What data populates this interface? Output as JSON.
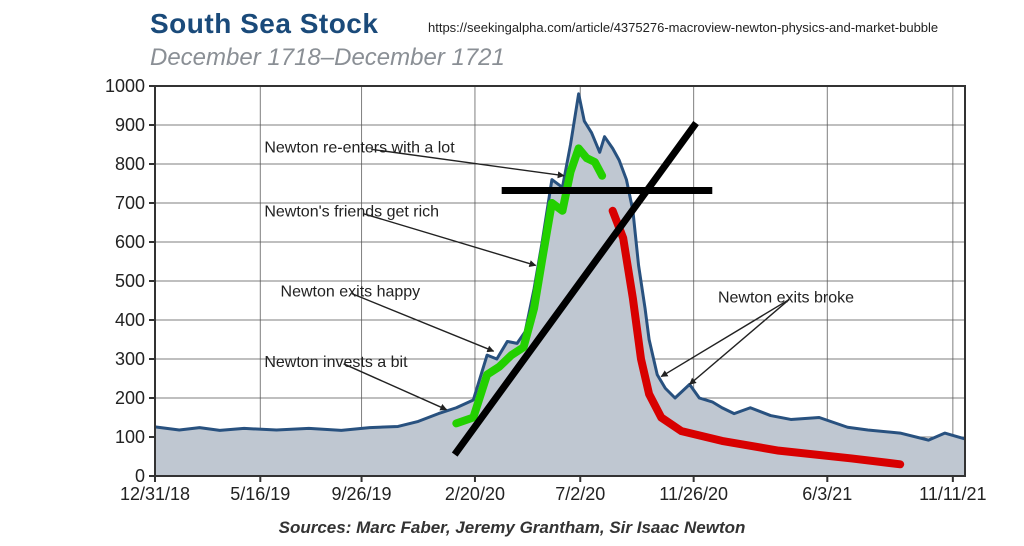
{
  "title": "South Sea Stock",
  "subtitle": "December 1718–December 1721",
  "source_url": "https://seekingalpha.com/article/4375276-macroview-newton-physics-and-market-bubble",
  "sources_line": "Sources: Marc Faber, Jeremy Grantham, Sir Isaac Newton",
  "chart": {
    "type": "area+line",
    "ylim": [
      0,
      1000
    ],
    "ytick_step": 100,
    "yticks": [
      0,
      100,
      200,
      300,
      400,
      500,
      600,
      700,
      800,
      900,
      1000
    ],
    "xticks": [
      {
        "t": 0.0,
        "label": "12/31/18"
      },
      {
        "t": 0.13,
        "label": "5/16/19"
      },
      {
        "t": 0.255,
        "label": "9/26/19"
      },
      {
        "t": 0.395,
        "label": "2/20/20"
      },
      {
        "t": 0.525,
        "label": "7/2/20"
      },
      {
        "t": 0.665,
        "label": "11/26/20"
      },
      {
        "t": 0.83,
        "label": "6/3/21"
      },
      {
        "t": 0.985,
        "label": "11/11/21"
      }
    ],
    "colors": {
      "title": "#1a4a7a",
      "main_line": "#28517f",
      "area_fill": "#bfc7d1",
      "grid": "#555555",
      "axis": "#333333",
      "axis_label": "#222222",
      "green_line": "#23d000",
      "red_line": "#d80000",
      "cross": "#000000",
      "background": "#ffffff"
    },
    "line_widths": {
      "main": 3,
      "grid": 1,
      "green": 8,
      "red": 8,
      "cross": 7
    },
    "stock_series": [
      {
        "t": 0.0,
        "v": 126
      },
      {
        "t": 0.03,
        "v": 118
      },
      {
        "t": 0.055,
        "v": 124
      },
      {
        "t": 0.08,
        "v": 117
      },
      {
        "t": 0.11,
        "v": 122
      },
      {
        "t": 0.15,
        "v": 118
      },
      {
        "t": 0.19,
        "v": 122
      },
      {
        "t": 0.23,
        "v": 117
      },
      {
        "t": 0.265,
        "v": 124
      },
      {
        "t": 0.3,
        "v": 127
      },
      {
        "t": 0.325,
        "v": 140
      },
      {
        "t": 0.35,
        "v": 160
      },
      {
        "t": 0.372,
        "v": 175
      },
      {
        "t": 0.393,
        "v": 195
      },
      {
        "t": 0.41,
        "v": 310
      },
      {
        "t": 0.422,
        "v": 300
      },
      {
        "t": 0.435,
        "v": 345
      },
      {
        "t": 0.447,
        "v": 340
      },
      {
        "t": 0.457,
        "v": 370
      },
      {
        "t": 0.468,
        "v": 480
      },
      {
        "t": 0.478,
        "v": 600
      },
      {
        "t": 0.49,
        "v": 760
      },
      {
        "t": 0.503,
        "v": 740
      },
      {
        "t": 0.513,
        "v": 850
      },
      {
        "t": 0.523,
        "v": 980
      },
      {
        "t": 0.53,
        "v": 910
      },
      {
        "t": 0.539,
        "v": 880
      },
      {
        "t": 0.549,
        "v": 830
      },
      {
        "t": 0.555,
        "v": 870
      },
      {
        "t": 0.565,
        "v": 840
      },
      {
        "t": 0.573,
        "v": 810
      },
      {
        "t": 0.582,
        "v": 760
      },
      {
        "t": 0.59,
        "v": 680
      },
      {
        "t": 0.597,
        "v": 540
      },
      {
        "t": 0.605,
        "v": 430
      },
      {
        "t": 0.61,
        "v": 350
      },
      {
        "t": 0.62,
        "v": 260
      },
      {
        "t": 0.63,
        "v": 225
      },
      {
        "t": 0.642,
        "v": 200
      },
      {
        "t": 0.66,
        "v": 235
      },
      {
        "t": 0.672,
        "v": 200
      },
      {
        "t": 0.688,
        "v": 190
      },
      {
        "t": 0.7,
        "v": 175
      },
      {
        "t": 0.715,
        "v": 160
      },
      {
        "t": 0.735,
        "v": 175
      },
      {
        "t": 0.76,
        "v": 155
      },
      {
        "t": 0.785,
        "v": 145
      },
      {
        "t": 0.82,
        "v": 150
      },
      {
        "t": 0.855,
        "v": 125
      },
      {
        "t": 0.88,
        "v": 118
      },
      {
        "t": 0.92,
        "v": 110
      },
      {
        "t": 0.955,
        "v": 92
      },
      {
        "t": 0.975,
        "v": 110
      },
      {
        "t": 1.0,
        "v": 95
      }
    ],
    "green_series": [
      {
        "t": 0.372,
        "v": 135
      },
      {
        "t": 0.393,
        "v": 150
      },
      {
        "t": 0.41,
        "v": 260
      },
      {
        "t": 0.425,
        "v": 280
      },
      {
        "t": 0.44,
        "v": 310
      },
      {
        "t": 0.455,
        "v": 330
      },
      {
        "t": 0.468,
        "v": 430
      },
      {
        "t": 0.478,
        "v": 555
      },
      {
        "t": 0.49,
        "v": 700
      },
      {
        "t": 0.503,
        "v": 680
      },
      {
        "t": 0.513,
        "v": 780
      },
      {
        "t": 0.523,
        "v": 840
      },
      {
        "t": 0.533,
        "v": 815
      },
      {
        "t": 0.543,
        "v": 805
      },
      {
        "t": 0.552,
        "v": 770
      }
    ],
    "red_series": [
      {
        "t": 0.565,
        "v": 680
      },
      {
        "t": 0.578,
        "v": 610
      },
      {
        "t": 0.59,
        "v": 455
      },
      {
        "t": 0.6,
        "v": 300
      },
      {
        "t": 0.61,
        "v": 210
      },
      {
        "t": 0.625,
        "v": 150
      },
      {
        "t": 0.65,
        "v": 115
      },
      {
        "t": 0.7,
        "v": 90
      },
      {
        "t": 0.77,
        "v": 65
      },
      {
        "t": 0.86,
        "v": 45
      },
      {
        "t": 0.92,
        "v": 30
      }
    ],
    "cross": {
      "horizontal": {
        "y": 732,
        "t_start": 0.428,
        "t_end": 0.688
      },
      "diagonal": {
        "t1": 0.37,
        "v1": 55,
        "t2": 0.668,
        "v2": 905
      }
    },
    "annotations": [
      {
        "text": "Newton re-enters with a lot",
        "label_t": 0.135,
        "label_v": 830,
        "arrows": [
          {
            "to_t": 0.505,
            "to_v": 770
          }
        ]
      },
      {
        "text": "Newton's friends get rich",
        "label_t": 0.135,
        "label_v": 665,
        "arrows": [
          {
            "to_t": 0.47,
            "to_v": 540
          }
        ]
      },
      {
        "text": "Newton exits happy",
        "label_t": 0.155,
        "label_v": 460,
        "arrows": [
          {
            "to_t": 0.418,
            "to_v": 320
          }
        ]
      },
      {
        "text": "Newton invests a bit",
        "label_t": 0.135,
        "label_v": 280,
        "arrows": [
          {
            "to_t": 0.36,
            "to_v": 170
          }
        ]
      },
      {
        "text": "Newton exits broke",
        "label_t": 0.695,
        "label_v": 445,
        "arrows": [
          {
            "to_t": 0.625,
            "to_v": 255
          },
          {
            "to_t": 0.66,
            "to_v": 235
          }
        ]
      }
    ]
  }
}
